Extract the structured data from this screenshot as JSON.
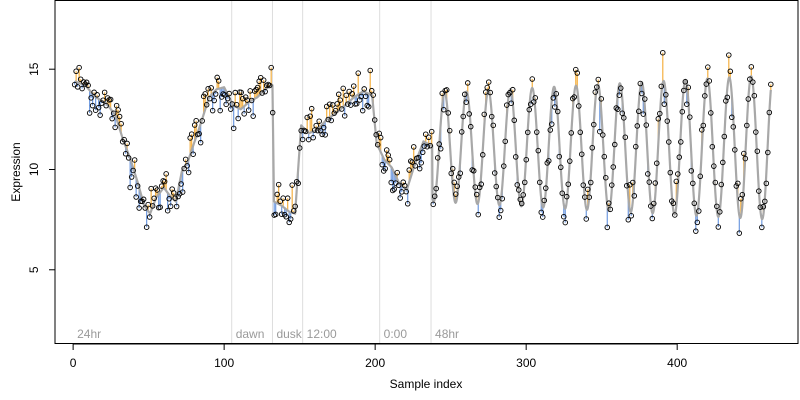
{
  "chart_data": {
    "type": "scatter",
    "xlabel": "Sample index",
    "ylabel": "Expression",
    "xlim": [
      -12,
      480
    ],
    "ylim": [
      1.3,
      18.4
    ],
    "x_ticks": [
      0,
      100,
      200,
      300,
      400
    ],
    "y_ticks": [
      5,
      10,
      15
    ],
    "grid": false,
    "colors": {
      "fit_line": "#a8a8a8",
      "residual_above": "#f5b041",
      "residual_below": "#6f9ae0",
      "points": "#000000",
      "phase_lines": "#dddddd",
      "phase_labels": "#9a9a9a"
    },
    "phase_markers": [
      {
        "x": 0,
        "label": "24hr"
      },
      {
        "x": 105,
        "label": "dawn"
      },
      {
        "x": 132,
        "label": "dusk"
      },
      {
        "x": 152,
        "label": "12:00"
      },
      {
        "x": 203,
        "label": "0:00"
      },
      {
        "x": 237,
        "label": "48hr"
      }
    ],
    "anchors": [
      [
        1,
        14.4
      ],
      [
        8,
        14.2
      ],
      [
        15,
        13.6
      ],
      [
        22,
        13.3
      ],
      [
        28,
        12.7
      ],
      [
        33,
        11.5
      ],
      [
        38,
        10.5
      ],
      [
        43,
        9.3
      ],
      [
        47,
        8.2
      ],
      [
        51,
        7.8
      ],
      [
        55,
        8.6
      ],
      [
        60,
        9.1
      ],
      [
        64,
        8.7
      ],
      [
        68,
        8.4
      ],
      [
        72,
        9.9
      ],
      [
        76,
        10.4
      ],
      [
        80,
        11.3
      ],
      [
        85,
        12.4
      ],
      [
        90,
        13.6
      ],
      [
        95,
        14.0
      ],
      [
        100,
        14.1
      ],
      [
        106,
        13.2
      ],
      [
        111,
        13.0
      ],
      [
        117,
        13.4
      ],
      [
        122,
        13.6
      ],
      [
        127,
        14.0
      ],
      [
        132,
        14.2
      ],
      [
        133,
        8.4
      ],
      [
        138,
        8.2
      ],
      [
        143,
        7.9
      ],
      [
        147,
        7.8
      ],
      [
        151,
        12.2
      ],
      [
        156,
        11.8
      ],
      [
        162,
        12.0
      ],
      [
        168,
        12.5
      ],
      [
        174,
        12.8
      ],
      [
        180,
        13.2
      ],
      [
        186,
        13.6
      ],
      [
        192,
        13.9
      ],
      [
        198,
        13.7
      ],
      [
        201,
        11.3
      ],
      [
        206,
        10.5
      ],
      [
        211,
        10.1
      ],
      [
        216,
        9.3
      ],
      [
        221,
        9.0
      ],
      [
        226,
        10.2
      ],
      [
        232,
        11.4
      ],
      [
        237,
        11.2
      ]
    ],
    "oscillation": {
      "x_start": 238,
      "x_end": 462,
      "period": 14.5,
      "center": 11.1,
      "amplitude_start": 2.7,
      "amplitude_end": 3.6,
      "phase_x": 246
    },
    "point_noise_sd": 0.55,
    "point_count": 465
  }
}
